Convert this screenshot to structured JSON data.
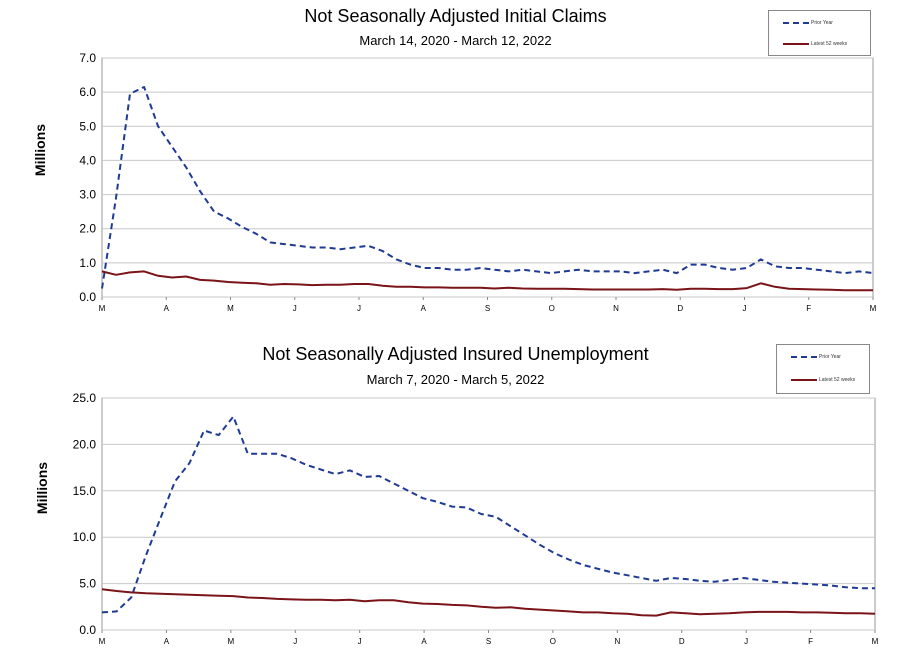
{
  "chart_data": [
    {
      "type": "line",
      "title": "Not Seasonally Adjusted Initial Claims",
      "subtitle": "March 14, 2020  -  March 12, 2022",
      "ylabel": "Millions",
      "xlabel": "",
      "ylim": [
        0,
        7.0
      ],
      "y_ticks": [
        "0.0",
        "1.0",
        "2.0",
        "3.0",
        "4.0",
        "5.0",
        "6.0",
        "7.0"
      ],
      "x_tick_labels": [
        "M",
        "A",
        "M",
        "J",
        "J",
        "A",
        "S",
        "O",
        "N",
        "D",
        "J",
        "F",
        "M"
      ],
      "grid": "horizontal",
      "legend_position": "top-right",
      "series": [
        {
          "name": "Prior Year",
          "style": "dashed",
          "color": "#1f3a93",
          "values": [
            0.25,
            2.9,
            5.95,
            6.15,
            5.0,
            4.4,
            3.8,
            3.1,
            2.5,
            2.3,
            2.05,
            1.85,
            1.6,
            1.55,
            1.5,
            1.45,
            1.45,
            1.4,
            1.45,
            1.5,
            1.35,
            1.1,
            0.95,
            0.85,
            0.85,
            0.8,
            0.8,
            0.85,
            0.8,
            0.75,
            0.8,
            0.75,
            0.7,
            0.75,
            0.8,
            0.75,
            0.75,
            0.75,
            0.7,
            0.75,
            0.8,
            0.7,
            0.95,
            0.95,
            0.85,
            0.8,
            0.85,
            1.1,
            0.9,
            0.85,
            0.85,
            0.8,
            0.75,
            0.7,
            0.75,
            0.7
          ]
        },
        {
          "name": "Latest 52 weeks",
          "style": "solid",
          "color": "#7a1418",
          "values": [
            0.75,
            0.65,
            0.72,
            0.75,
            0.62,
            0.57,
            0.6,
            0.5,
            0.48,
            0.44,
            0.42,
            0.4,
            0.36,
            0.38,
            0.37,
            0.35,
            0.36,
            0.36,
            0.38,
            0.38,
            0.33,
            0.3,
            0.3,
            0.28,
            0.28,
            0.27,
            0.27,
            0.27,
            0.25,
            0.27,
            0.25,
            0.24,
            0.24,
            0.24,
            0.23,
            0.22,
            0.22,
            0.22,
            0.22,
            0.22,
            0.23,
            0.21,
            0.24,
            0.24,
            0.23,
            0.23,
            0.26,
            0.4,
            0.3,
            0.24,
            0.23,
            0.22,
            0.21,
            0.2,
            0.2,
            0.2
          ]
        }
      ]
    },
    {
      "type": "line",
      "title": "Not Seasonally Adjusted Insured Unemployment",
      "subtitle": "March 7, 2020 - March 5, 2022",
      "ylabel": "Millions",
      "xlabel": "",
      "ylim": [
        0,
        25.0
      ],
      "y_ticks": [
        "0.0",
        "5.0",
        "10.0",
        "15.0",
        "20.0",
        "25.0"
      ],
      "x_tick_labels": [
        "M",
        "A",
        "M",
        "J",
        "J",
        "A",
        "S",
        "O",
        "N",
        "D",
        "J",
        "F",
        "M"
      ],
      "grid": "horizontal",
      "legend_position": "top-right",
      "series": [
        {
          "name": "Prior Year",
          "style": "dashed",
          "color": "#1f3a93",
          "values": [
            1.9,
            2.0,
            3.5,
            8.0,
            12.0,
            16.0,
            18.0,
            21.5,
            21.0,
            23.0,
            19.0,
            19.0,
            19.0,
            18.5,
            17.8,
            17.3,
            16.8,
            17.2,
            16.5,
            16.6,
            15.8,
            15.0,
            14.2,
            13.8,
            13.3,
            13.2,
            12.5,
            12.2,
            11.2,
            10.2,
            9.2,
            8.3,
            7.6,
            7.0,
            6.6,
            6.2,
            5.9,
            5.6,
            5.3,
            5.6,
            5.5,
            5.3,
            5.2,
            5.4,
            5.6,
            5.4,
            5.2,
            5.1,
            5.0,
            4.9,
            4.8,
            4.6,
            4.5,
            4.5
          ]
        },
        {
          "name": "Latest 52 weeks",
          "style": "solid",
          "color": "#7a1418",
          "values": [
            4.4,
            4.2,
            4.05,
            3.95,
            3.9,
            3.85,
            3.8,
            3.75,
            3.7,
            3.65,
            3.5,
            3.45,
            3.35,
            3.3,
            3.25,
            3.25,
            3.2,
            3.25,
            3.1,
            3.2,
            3.2,
            3.0,
            2.85,
            2.8,
            2.7,
            2.65,
            2.5,
            2.4,
            2.45,
            2.3,
            2.2,
            2.1,
            2.0,
            1.9,
            1.9,
            1.8,
            1.75,
            1.6,
            1.55,
            1.9,
            1.8,
            1.7,
            1.75,
            1.8,
            1.9,
            1.95,
            1.95,
            1.95,
            1.9,
            1.9,
            1.85,
            1.8,
            1.8,
            1.75
          ]
        }
      ]
    }
  ]
}
